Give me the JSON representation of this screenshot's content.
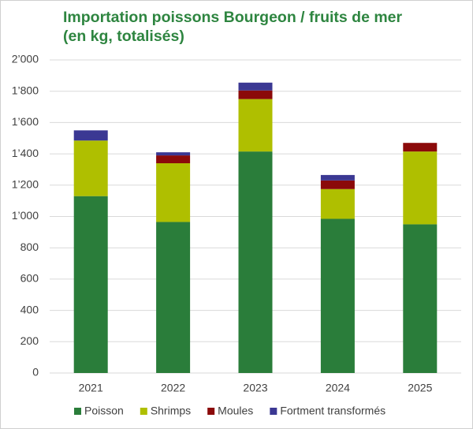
{
  "chart_data": {
    "type": "stacked-bar",
    "title": "Importation poissons Bourgeon / fruits de mer (en kg, totalisés)",
    "categories": [
      "2021",
      "2022",
      "2023",
      "2024",
      "2025"
    ],
    "series": [
      {
        "name": "Poisson",
        "color": "#2a7d3a",
        "values": [
          1130,
          965,
          1415,
          985,
          950
        ]
      },
      {
        "name": "Shrimps",
        "color": "#afbf00",
        "values": [
          355,
          375,
          335,
          190,
          465
        ]
      },
      {
        "name": "Moules",
        "color": "#8b0a0a",
        "values": [
          0,
          50,
          55,
          55,
          55
        ]
      },
      {
        "name": "Fortment transformés",
        "color": "#3b3893",
        "values": [
          65,
          20,
          50,
          35,
          0
        ]
      }
    ],
    "ylim": [
      0,
      2000
    ],
    "yticks": [
      0,
      200,
      400,
      600,
      800,
      {
        "value": 1000,
        "label": "1’000"
      },
      {
        "value": 1200,
        "label": "1’200"
      },
      {
        "value": 1400,
        "label": "1’400"
      },
      {
        "value": 1600,
        "label": "1’600"
      },
      {
        "value": 1800,
        "label": "1’800"
      },
      {
        "value": 2000,
        "label": "2’000"
      }
    ],
    "grid": true,
    "legend": "bottom"
  }
}
